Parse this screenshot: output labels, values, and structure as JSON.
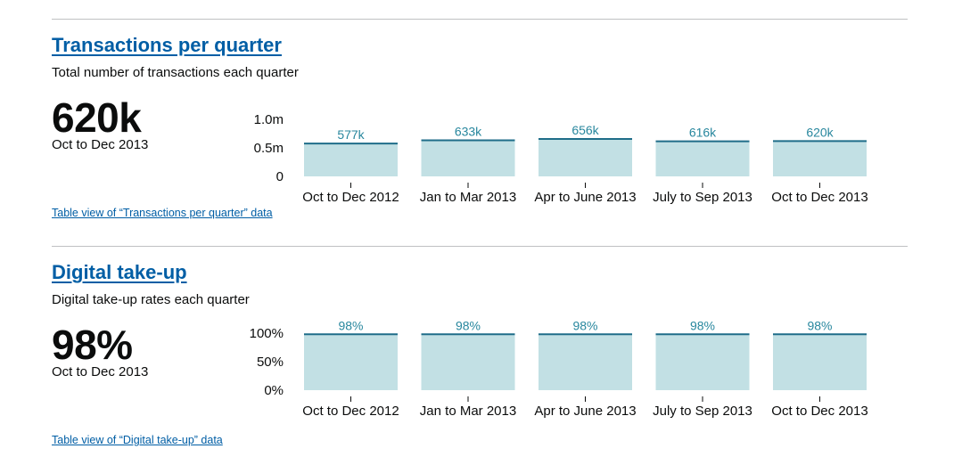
{
  "modules": [
    {
      "title": "Transactions per quarter",
      "description": "Total number of transactions each quarter",
      "headline_value": "620k",
      "headline_period": "Oct to Dec 2013",
      "table_link": "Table view of “Transactions per quarter” data"
    },
    {
      "title": "Digital take-up",
      "description": "Digital take-up rates each quarter",
      "headline_value": "98%",
      "headline_period": "Oct to Dec 2013",
      "table_link": "Table view of “Digital take-up” data"
    }
  ],
  "colors": {
    "bar_fill": "#c2e0e4",
    "bar_top": "#1f6d89",
    "data_label": "#28879e",
    "link": "#005ea5",
    "rule": "#bfc1c3"
  },
  "chart_data": [
    {
      "type": "bar",
      "categories": [
        "Oct to Dec 2012",
        "Jan to Mar 2013",
        "Apr to June 2013",
        "July to Sep 2013",
        "Oct to Dec 2013"
      ],
      "values": [
        577000,
        633000,
        656000,
        616000,
        620000
      ],
      "data_labels": [
        "577k",
        "633k",
        "656k",
        "616k",
        "620k"
      ],
      "yticks": [
        0,
        500000,
        1000000
      ],
      "ytick_labels": [
        "0",
        "0.5m",
        "1.0m"
      ],
      "ylim": [
        0,
        1000000
      ],
      "grid": false
    },
    {
      "type": "bar",
      "categories": [
        "Oct to Dec 2012",
        "Jan to Mar 2013",
        "Apr to June 2013",
        "July to Sep 2013",
        "Oct to Dec 2013"
      ],
      "values": [
        98,
        98,
        98,
        98,
        98
      ],
      "data_labels": [
        "98%",
        "98%",
        "98%",
        "98%",
        "98%"
      ],
      "yticks": [
        0,
        50,
        100
      ],
      "ytick_labels": [
        "0%",
        "50%",
        "100%"
      ],
      "ylim": [
        0,
        100
      ],
      "grid": false
    }
  ]
}
